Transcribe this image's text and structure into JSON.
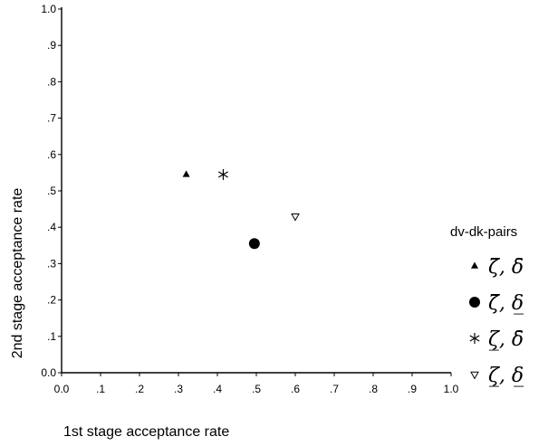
{
  "chart_data": {
    "type": "scatter",
    "xlabel": "1st stage acceptance rate",
    "ylabel": "2nd stage acceptance rate",
    "xlim": [
      0,
      1
    ],
    "ylim": [
      0,
      1
    ],
    "x_ticks": [
      "0.0",
      ".1",
      ".2",
      ".3",
      ".4",
      ".5",
      ".6",
      ".7",
      ".8",
      ".9",
      "1.0"
    ],
    "y_ticks": [
      "0.0",
      ".1",
      ".2",
      ".3",
      ".4",
      ".5",
      ".6",
      ".7",
      ".8",
      ".9",
      "1.0"
    ],
    "grid": false,
    "legend": {
      "title": "dv-dk-pairs",
      "placement": "right"
    },
    "series": [
      {
        "name": "ζ̄, δ̄",
        "marker": "filled-triangle",
        "x": 0.32,
        "y": 0.545
      },
      {
        "name": "ζ̄, δ̲",
        "marker": "filled-circle",
        "x": 0.495,
        "y": 0.355
      },
      {
        "name": "ζ̲, δ̄",
        "marker": "asterisk",
        "x": 0.415,
        "y": 0.545
      },
      {
        "name": "ζ̲, δ̲",
        "marker": "open-triangle-down",
        "x": 0.6,
        "y": 0.43
      }
    ]
  }
}
